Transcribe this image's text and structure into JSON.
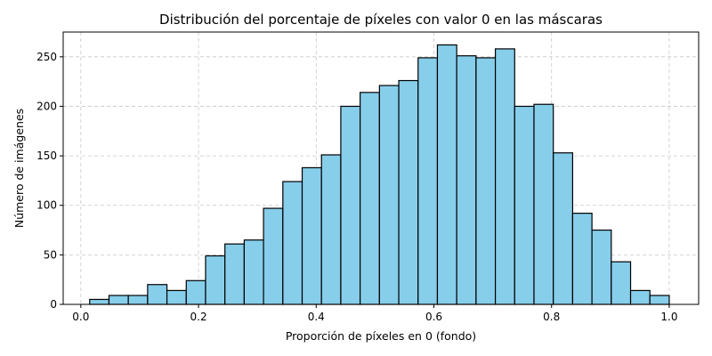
{
  "chart_data": {
    "type": "bar",
    "title": "Distribución del porcentaje de píxeles con valor 0 en las máscaras",
    "xlabel": "Proporción de píxeles en 0 (fondo)",
    "ylabel": "Número de imágenes",
    "xlim": [
      -0.03,
      1.05
    ],
    "ylim": [
      0,
      275
    ],
    "xticks": [
      0.0,
      0.2,
      0.4,
      0.6,
      0.8,
      1.0
    ],
    "xtick_labels": [
      "0.0",
      "0.2",
      "0.4",
      "0.6",
      "0.8",
      "1.0"
    ],
    "yticks": [
      0,
      50,
      100,
      150,
      200,
      250
    ],
    "ytick_labels": [
      "0",
      "50",
      "100",
      "150",
      "200",
      "250"
    ],
    "grid": true,
    "bar_color": "#87ceeb",
    "edge_color": "#000000",
    "bins_start": 0.015,
    "bins_end": 1.0,
    "counts": [
      5,
      9,
      9,
      20,
      14,
      24,
      49,
      61,
      65,
      97,
      124,
      138,
      151,
      200,
      214,
      221,
      226,
      249,
      262,
      251,
      249,
      258,
      200,
      202,
      153,
      92,
      75,
      43,
      14,
      9
    ]
  }
}
